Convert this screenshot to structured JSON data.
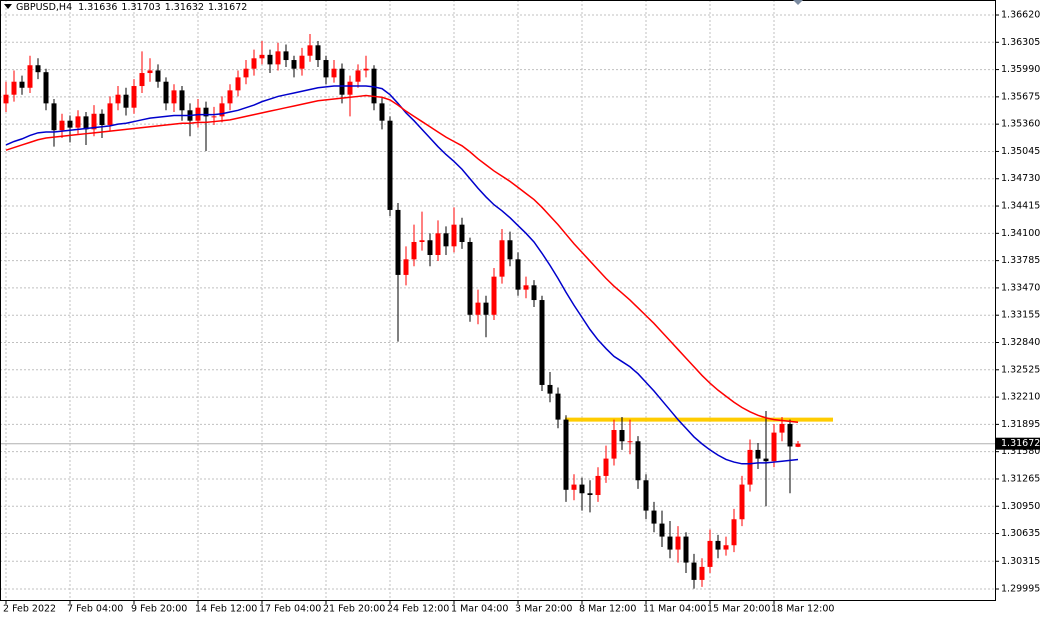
{
  "chart_data": {
    "type": "candlestick",
    "symbol": "GBPUSD,H4",
    "up_color": "#ff0000",
    "down_color": "#000000",
    "ylim": [
      1.29868,
      1.36793
    ],
    "yticks": [
      {
        "value": 1.3662,
        "label": "1.36620"
      },
      1.36305,
      {
        "value": 1.3599,
        "label": "1.35990"
      },
      1.35675,
      {
        "value": 1.3536,
        "label": "1.35360"
      },
      1.35045,
      {
        "value": 1.3473,
        "label": "1.34730"
      },
      1.34415,
      {
        "value": 1.341,
        "label": "1.34100"
      },
      1.33785,
      {
        "value": 1.3347,
        "label": "1.33470"
      },
      1.33155,
      {
        "value": 1.3284,
        "label": "1.32840"
      },
      1.32525,
      {
        "value": 1.3221,
        "label": "1.32210"
      },
      1.31895,
      {
        "value": 1.3158,
        "label": "1.31580"
      },
      1.31265,
      {
        "value": 1.3095,
        "label": "1.30950"
      },
      1.30635,
      1.30315,
      1.29995
    ],
    "grid": true,
    "current_price": 1.31672,
    "level": {
      "value": 1.3195,
      "color": "#ffcc00"
    },
    "categories": [
      "2 Feb 2022",
      null,
      null,
      null,
      null,
      null,
      null,
      null,
      "7 Feb 04:00",
      null,
      null,
      null,
      null,
      null,
      null,
      null,
      "9 Feb 20:00",
      null,
      null,
      null,
      null,
      null,
      null,
      null,
      "14 Feb 12:00",
      null,
      null,
      null,
      null,
      null,
      null,
      null,
      "17 Feb 04:00",
      null,
      null,
      null,
      null,
      null,
      null,
      null,
      "21 Feb 20:00",
      null,
      null,
      null,
      null,
      null,
      null,
      null,
      "24 Feb 12:00",
      null,
      null,
      null,
      null,
      null,
      null,
      null,
      "1 Mar 04:00",
      null,
      null,
      null,
      null,
      null,
      null,
      null,
      "3 Mar 20:00",
      null,
      null,
      null,
      null,
      null,
      null,
      null,
      "8 Mar 12:00",
      null,
      null,
      null,
      null,
      null,
      null,
      null,
      "11 Mar 04:00",
      null,
      null,
      null,
      null,
      null,
      null,
      null,
      "15 Mar 20:00",
      null,
      null,
      null,
      null,
      null,
      null,
      null,
      "18 Mar 12:00",
      null,
      null,
      null
    ],
    "candles": [
      [
        1.356,
        1.3585,
        1.355,
        1.357
      ],
      [
        1.357,
        1.3598,
        1.3562,
        1.3585
      ],
      [
        1.3585,
        1.3592,
        1.357,
        1.3578
      ],
      [
        1.3578,
        1.3615,
        1.3572,
        1.3604
      ],
      [
        1.3604,
        1.3612,
        1.3588,
        1.3596
      ],
      [
        1.3596,
        1.36,
        1.3552,
        1.356
      ],
      [
        1.356,
        1.3565,
        1.351,
        1.3529
      ],
      [
        1.3529,
        1.3548,
        1.352,
        1.354
      ],
      [
        1.354,
        1.3546,
        1.3515,
        1.3532
      ],
      [
        1.3532,
        1.3552,
        1.3525,
        1.3545
      ],
      [
        1.3545,
        1.355,
        1.3512,
        1.353
      ],
      [
        1.353,
        1.3558,
        1.3522,
        1.3548
      ],
      [
        1.3548,
        1.3553,
        1.352,
        1.3535
      ],
      [
        1.3535,
        1.3568,
        1.3528,
        1.356
      ],
      [
        1.356,
        1.358,
        1.3552,
        1.357
      ],
      [
        1.357,
        1.3578,
        1.3546,
        1.3555
      ],
      [
        1.3555,
        1.3588,
        1.3548,
        1.358
      ],
      [
        1.358,
        1.362,
        1.3572,
        1.3595
      ],
      [
        1.3595,
        1.3612,
        1.3585,
        1.3598
      ],
      [
        1.3598,
        1.3605,
        1.3578,
        1.3585
      ],
      [
        1.3585,
        1.359,
        1.3552,
        1.356
      ],
      [
        1.356,
        1.3582,
        1.355,
        1.3575
      ],
      [
        1.3575,
        1.358,
        1.354,
        1.3552
      ],
      [
        1.3552,
        1.356,
        1.3522,
        1.354
      ],
      [
        1.354,
        1.3565,
        1.3532,
        1.3555
      ],
      [
        1.3555,
        1.3562,
        1.3505,
        1.3545
      ],
      [
        1.3545,
        1.3556,
        1.3535,
        1.3545
      ],
      [
        1.3545,
        1.3568,
        1.3538,
        1.356
      ],
      [
        1.356,
        1.3582,
        1.3552,
        1.3575
      ],
      [
        1.3575,
        1.3598,
        1.3568,
        1.359
      ],
      [
        1.359,
        1.361,
        1.3582,
        1.36
      ],
      [
        1.36,
        1.3622,
        1.3592,
        1.3612
      ],
      [
        1.3612,
        1.3632,
        1.3605,
        1.3616
      ],
      [
        1.3616,
        1.3622,
        1.3595,
        1.3605
      ],
      [
        1.3605,
        1.363,
        1.3598,
        1.362
      ],
      [
        1.362,
        1.3628,
        1.3602,
        1.361
      ],
      [
        1.361,
        1.3615,
        1.359,
        1.36
      ],
      [
        1.36,
        1.3624,
        1.3592,
        1.3615
      ],
      [
        1.3615,
        1.364,
        1.3608,
        1.3627
      ],
      [
        1.3627,
        1.3632,
        1.3602,
        1.361
      ],
      [
        1.361,
        1.3615,
        1.3582,
        1.359
      ],
      [
        1.359,
        1.361,
        1.3584,
        1.36
      ],
      [
        1.36,
        1.3606,
        1.356,
        1.357
      ],
      [
        1.357,
        1.3592,
        1.3545,
        1.3585
      ],
      [
        1.3585,
        1.3605,
        1.3578,
        1.3598
      ],
      [
        1.3598,
        1.3615,
        1.359,
        1.36
      ],
      [
        1.36,
        1.3604,
        1.3552,
        1.356
      ],
      [
        1.356,
        1.3566,
        1.353,
        1.354
      ],
      [
        1.354,
        1.3545,
        1.343,
        1.3437
      ],
      [
        1.3437,
        1.3445,
        1.3285,
        1.3362
      ],
      [
        1.3362,
        1.3395,
        1.335,
        1.338
      ],
      [
        1.338,
        1.342,
        1.3372,
        1.34
      ],
      [
        1.34,
        1.3435,
        1.339,
        1.3402
      ],
      [
        1.3402,
        1.341,
        1.3372,
        1.3385
      ],
      [
        1.3385,
        1.3425,
        1.3378,
        1.341
      ],
      [
        1.341,
        1.3418,
        1.3385,
        1.3395
      ],
      [
        1.3395,
        1.344,
        1.3388,
        1.342
      ],
      [
        1.342,
        1.3428,
        1.3392,
        1.34
      ],
      [
        1.34,
        1.3405,
        1.3308,
        1.3316
      ],
      [
        1.3316,
        1.3345,
        1.3305,
        1.333
      ],
      [
        1.333,
        1.3338,
        1.329,
        1.3316
      ],
      [
        1.3316,
        1.337,
        1.331,
        1.336
      ],
      [
        1.336,
        1.3415,
        1.3352,
        1.3402
      ],
      [
        1.3402,
        1.3412,
        1.3372,
        1.338
      ],
      [
        1.338,
        1.3388,
        1.3338,
        1.3345
      ],
      [
        1.3345,
        1.336,
        1.3335,
        1.335
      ],
      [
        1.335,
        1.3356,
        1.3325,
        1.3333
      ],
      [
        1.3333,
        1.3338,
        1.3228,
        1.3235
      ],
      [
        1.3235,
        1.325,
        1.3215,
        1.3225
      ],
      [
        1.3225,
        1.3232,
        1.3185,
        1.3195
      ],
      [
        1.3195,
        1.32,
        1.31,
        1.3114
      ],
      [
        1.3114,
        1.3132,
        1.3102,
        1.312
      ],
      [
        1.312,
        1.3128,
        1.309,
        1.311
      ],
      [
        1.311,
        1.3125,
        1.3088,
        1.3108
      ],
      [
        1.3108,
        1.314,
        1.31,
        1.313
      ],
      [
        1.313,
        1.3165,
        1.3122,
        1.315
      ],
      [
        1.315,
        1.3195,
        1.3142,
        1.3183
      ],
      [
        1.3183,
        1.3198,
        1.316,
        1.317
      ],
      [
        1.317,
        1.3195,
        1.3155,
        1.317
      ],
      [
        1.317,
        1.3176,
        1.3115,
        1.3125
      ],
      [
        1.3125,
        1.3132,
        1.308,
        1.309
      ],
      [
        1.309,
        1.31,
        1.3065,
        1.3075
      ],
      [
        1.3075,
        1.309,
        1.3048,
        1.306
      ],
      [
        1.306,
        1.3078,
        1.3035,
        1.3045
      ],
      [
        1.3045,
        1.3072,
        1.303,
        1.306
      ],
      [
        1.306,
        1.3065,
        1.3018,
        1.303
      ],
      [
        1.303,
        1.304,
        1.3,
        1.301
      ],
      [
        1.301,
        1.3035,
        1.3002,
        1.3025
      ],
      [
        1.3025,
        1.3068,
        1.3018,
        1.3055
      ],
      [
        1.3055,
        1.3062,
        1.3035,
        1.3045
      ],
      [
        1.3045,
        1.306,
        1.3038,
        1.305
      ],
      [
        1.305,
        1.3092,
        1.3042,
        1.308
      ],
      [
        1.308,
        1.313,
        1.3072,
        1.312
      ],
      [
        1.312,
        1.3172,
        1.3112,
        1.316
      ],
      [
        1.316,
        1.3168,
        1.3138,
        1.315
      ],
      [
        1.315,
        1.3205,
        1.3095,
        1.3147
      ],
      [
        1.3147,
        1.319,
        1.314,
        1.318
      ],
      [
        1.318,
        1.3198,
        1.317,
        1.319
      ],
      [
        1.319,
        1.3195,
        1.311,
        1.3164
      ],
      [
        1.31636,
        1.31703,
        1.31632,
        1.31672
      ]
    ],
    "series": [
      {
        "color": "#0000cc",
        "values": [
          1.3512,
          1.3516,
          1.3519,
          1.3523,
          1.3526,
          1.3527,
          1.3527,
          1.3528,
          1.3529,
          1.353,
          1.3531,
          1.3532,
          1.3533,
          1.3534,
          1.3536,
          1.3537,
          1.3539,
          1.3541,
          1.3543,
          1.3544,
          1.3545,
          1.3546,
          1.3546,
          1.3546,
          1.3547,
          1.3547,
          1.3547,
          1.3548,
          1.355,
          1.3552,
          1.3555,
          1.3558,
          1.3562,
          1.3565,
          1.3568,
          1.357,
          1.3572,
          1.3574,
          1.3576,
          1.3578,
          1.3579,
          1.358,
          1.358,
          1.358,
          1.358,
          1.358,
          1.3579,
          1.3577,
          1.357,
          1.356,
          1.3549,
          1.354,
          1.353,
          1.352,
          1.351,
          1.3501,
          1.3493,
          1.3484,
          1.3473,
          1.3462,
          1.3452,
          1.3443,
          1.3436,
          1.3428,
          1.3419,
          1.341,
          1.34,
          1.3387,
          1.3373,
          1.3358,
          1.3342,
          1.3327,
          1.3313,
          1.3299,
          1.3287,
          1.3277,
          1.3268,
          1.3262,
          1.3256,
          1.3248,
          1.3238,
          1.3228,
          1.3217,
          1.3206,
          1.3195,
          1.3185,
          1.3175,
          1.3167,
          1.316,
          1.3154,
          1.3149,
          1.3146,
          1.3144,
          1.3144,
          1.3145,
          1.3145,
          1.3146,
          1.3147,
          1.3148,
          1.3149
        ]
      },
      {
        "color": "#ff0000",
        "values": [
          1.3506,
          1.3509,
          1.3512,
          1.3515,
          1.3518,
          1.352,
          1.3521,
          1.3522,
          1.3523,
          1.3524,
          1.3525,
          1.3526,
          1.3527,
          1.3528,
          1.3529,
          1.353,
          1.3531,
          1.3532,
          1.3533,
          1.3534,
          1.3535,
          1.3536,
          1.3537,
          1.3537,
          1.3538,
          1.3538,
          1.3539,
          1.354,
          1.3541,
          1.3543,
          1.3545,
          1.3547,
          1.3549,
          1.3551,
          1.3553,
          1.3555,
          1.3557,
          1.3559,
          1.3561,
          1.3563,
          1.3564,
          1.3565,
          1.3566,
          1.3567,
          1.3568,
          1.3569,
          1.3568,
          1.3567,
          1.3564,
          1.3558,
          1.3551,
          1.3545,
          1.3539,
          1.3533,
          1.3527,
          1.3521,
          1.3516,
          1.3511,
          1.3504,
          1.3496,
          1.3489,
          1.3482,
          1.3476,
          1.347,
          1.3463,
          1.3456,
          1.3449,
          1.344,
          1.343,
          1.342,
          1.3409,
          1.3398,
          1.3388,
          1.3378,
          1.3368,
          1.3358,
          1.3349,
          1.3341,
          1.3333,
          1.3324,
          1.3315,
          1.3306,
          1.3296,
          1.3286,
          1.3276,
          1.3266,
          1.3256,
          1.3246,
          1.3237,
          1.3229,
          1.3222,
          1.3215,
          1.3209,
          1.3204,
          1.32,
          1.3197,
          1.3195,
          1.3194,
          1.3193,
          1.3192
        ]
      }
    ]
  }
}
